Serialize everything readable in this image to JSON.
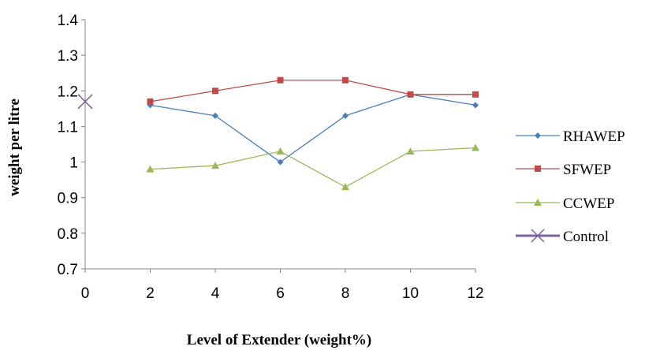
{
  "chart_data": {
    "type": "line",
    "x": [
      0,
      2,
      4,
      6,
      8,
      10,
      12
    ],
    "xticks": [
      "0",
      "2",
      "4",
      "6",
      "8",
      "10",
      "12"
    ],
    "yticks": [
      "0.7",
      "0.8",
      "0.9",
      "1",
      "1.1",
      "1.2",
      "1.3",
      "1.4"
    ],
    "ylim": [
      0.7,
      1.4
    ],
    "xlim": [
      0,
      12
    ],
    "xlabel": "Level of Extender (weight%)",
    "ylabel": "weight  per litre",
    "grid": false,
    "legend_position": "right",
    "series": [
      {
        "name": "RHAWEP",
        "color": "#4a7ebb",
        "marker": "diamond",
        "x": [
          2,
          4,
          6,
          8,
          10,
          12
        ],
        "values": [
          1.16,
          1.13,
          1.0,
          1.13,
          1.19,
          1.16
        ]
      },
      {
        "name": "SFWEP",
        "color": "#be4b48",
        "marker": "square",
        "x": [
          2,
          4,
          6,
          8,
          10,
          12
        ],
        "values": [
          1.17,
          1.2,
          1.23,
          1.23,
          1.19,
          1.19
        ]
      },
      {
        "name": "CCWEP",
        "color": "#98b954",
        "marker": "triangle",
        "x": [
          2,
          4,
          6,
          8,
          10,
          12
        ],
        "values": [
          0.98,
          0.99,
          1.03,
          0.93,
          1.03,
          1.04
        ]
      },
      {
        "name": "Control",
        "color": "#7d60a0",
        "marker": "x",
        "x": [
          0
        ],
        "values": [
          1.17
        ]
      }
    ]
  }
}
